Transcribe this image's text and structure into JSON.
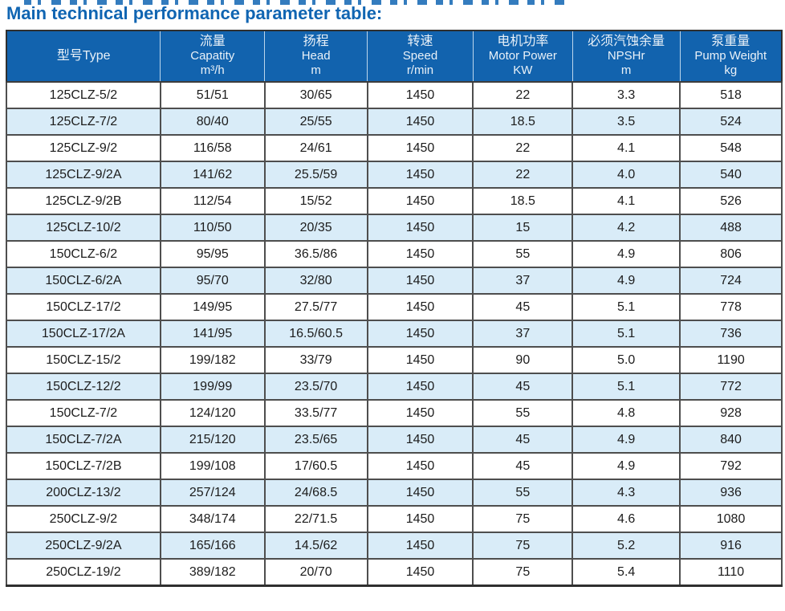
{
  "page": {
    "title": "Main technical performance parameter table:"
  },
  "colors": {
    "title_blue": "#1065b2",
    "header_bg": "#1263ae",
    "header_text": "#e9f1f8",
    "row_stripe": "#d9ecf8",
    "grid_border": "#4e4e4e"
  },
  "table": {
    "columns": [
      {
        "key": "type",
        "lines": [
          "型号Type"
        ]
      },
      {
        "key": "capacity",
        "lines": [
          "流量",
          "Capatity",
          "m³/h"
        ]
      },
      {
        "key": "head",
        "lines": [
          "扬程",
          "Head",
          "m"
        ]
      },
      {
        "key": "speed",
        "lines": [
          "转速",
          "Speed",
          "r/min"
        ]
      },
      {
        "key": "motor-power",
        "lines": [
          "电机功率",
          "Motor Power",
          "KW"
        ]
      },
      {
        "key": "npshr",
        "lines": [
          "必须汽蚀余量",
          "NPSHr",
          "m"
        ]
      },
      {
        "key": "pump-weight",
        "lines": [
          "泵重量",
          "Pump Weight",
          "kg"
        ]
      }
    ],
    "col_widths_pct": [
      19.86,
      13.44,
      13.24,
      13.65,
      12.82,
      13.86,
      13.13
    ],
    "rows": [
      [
        "125CLZ-5/2",
        "51/51",
        "30/65",
        "1450",
        "22",
        "3.3",
        "518"
      ],
      [
        "125CLZ-7/2",
        "80/40",
        "25/55",
        "1450",
        "18.5",
        "3.5",
        "524"
      ],
      [
        "125CLZ-9/2",
        "116/58",
        "24/61",
        "1450",
        "22",
        "4.1",
        "548"
      ],
      [
        "125CLZ-9/2A",
        "141/62",
        "25.5/59",
        "1450",
        "22",
        "4.0",
        "540"
      ],
      [
        "125CLZ-9/2B",
        "112/54",
        "15/52",
        "1450",
        "18.5",
        "4.1",
        "526"
      ],
      [
        "125CLZ-10/2",
        "110/50",
        "20/35",
        "1450",
        "15",
        "4.2",
        "488"
      ],
      [
        "150CLZ-6/2",
        "95/95",
        "36.5/86",
        "1450",
        "55",
        "4.9",
        "806"
      ],
      [
        "150CLZ-6/2A",
        "95/70",
        "32/80",
        "1450",
        "37",
        "4.9",
        "724"
      ],
      [
        "150CLZ-17/2",
        "149/95",
        "27.5/77",
        "1450",
        "45",
        "5.1",
        "778"
      ],
      [
        "150CLZ-17/2A",
        "141/95",
        "16.5/60.5",
        "1450",
        "37",
        "5.1",
        "736"
      ],
      [
        "150CLZ-15/2",
        "199/182",
        "33/79",
        "1450",
        "90",
        "5.0",
        "1190"
      ],
      [
        "150CLZ-12/2",
        "199/99",
        "23.5/70",
        "1450",
        "45",
        "5.1",
        "772"
      ],
      [
        "150CLZ-7/2",
        "124/120",
        "33.5/77",
        "1450",
        "55",
        "4.8",
        "928"
      ],
      [
        "150CLZ-7/2A",
        "215/120",
        "23.5/65",
        "1450",
        "45",
        "4.9",
        "840"
      ],
      [
        "150CLZ-7/2B",
        "199/108",
        "17/60.5",
        "1450",
        "45",
        "4.9",
        "792"
      ],
      [
        "200CLZ-13/2",
        "257/124",
        "24/68.5",
        "1450",
        "55",
        "4.3",
        "936"
      ],
      [
        "250CLZ-9/2",
        "348/174",
        "22/71.5",
        "1450",
        "75",
        "4.6",
        "1080"
      ],
      [
        "250CLZ-9/2A",
        "165/166",
        "14.5/62",
        "1450",
        "75",
        "5.2",
        "916"
      ],
      [
        "250CLZ-19/2",
        "389/182",
        "20/70",
        "1450",
        "75",
        "5.4",
        "1110"
      ]
    ]
  }
}
